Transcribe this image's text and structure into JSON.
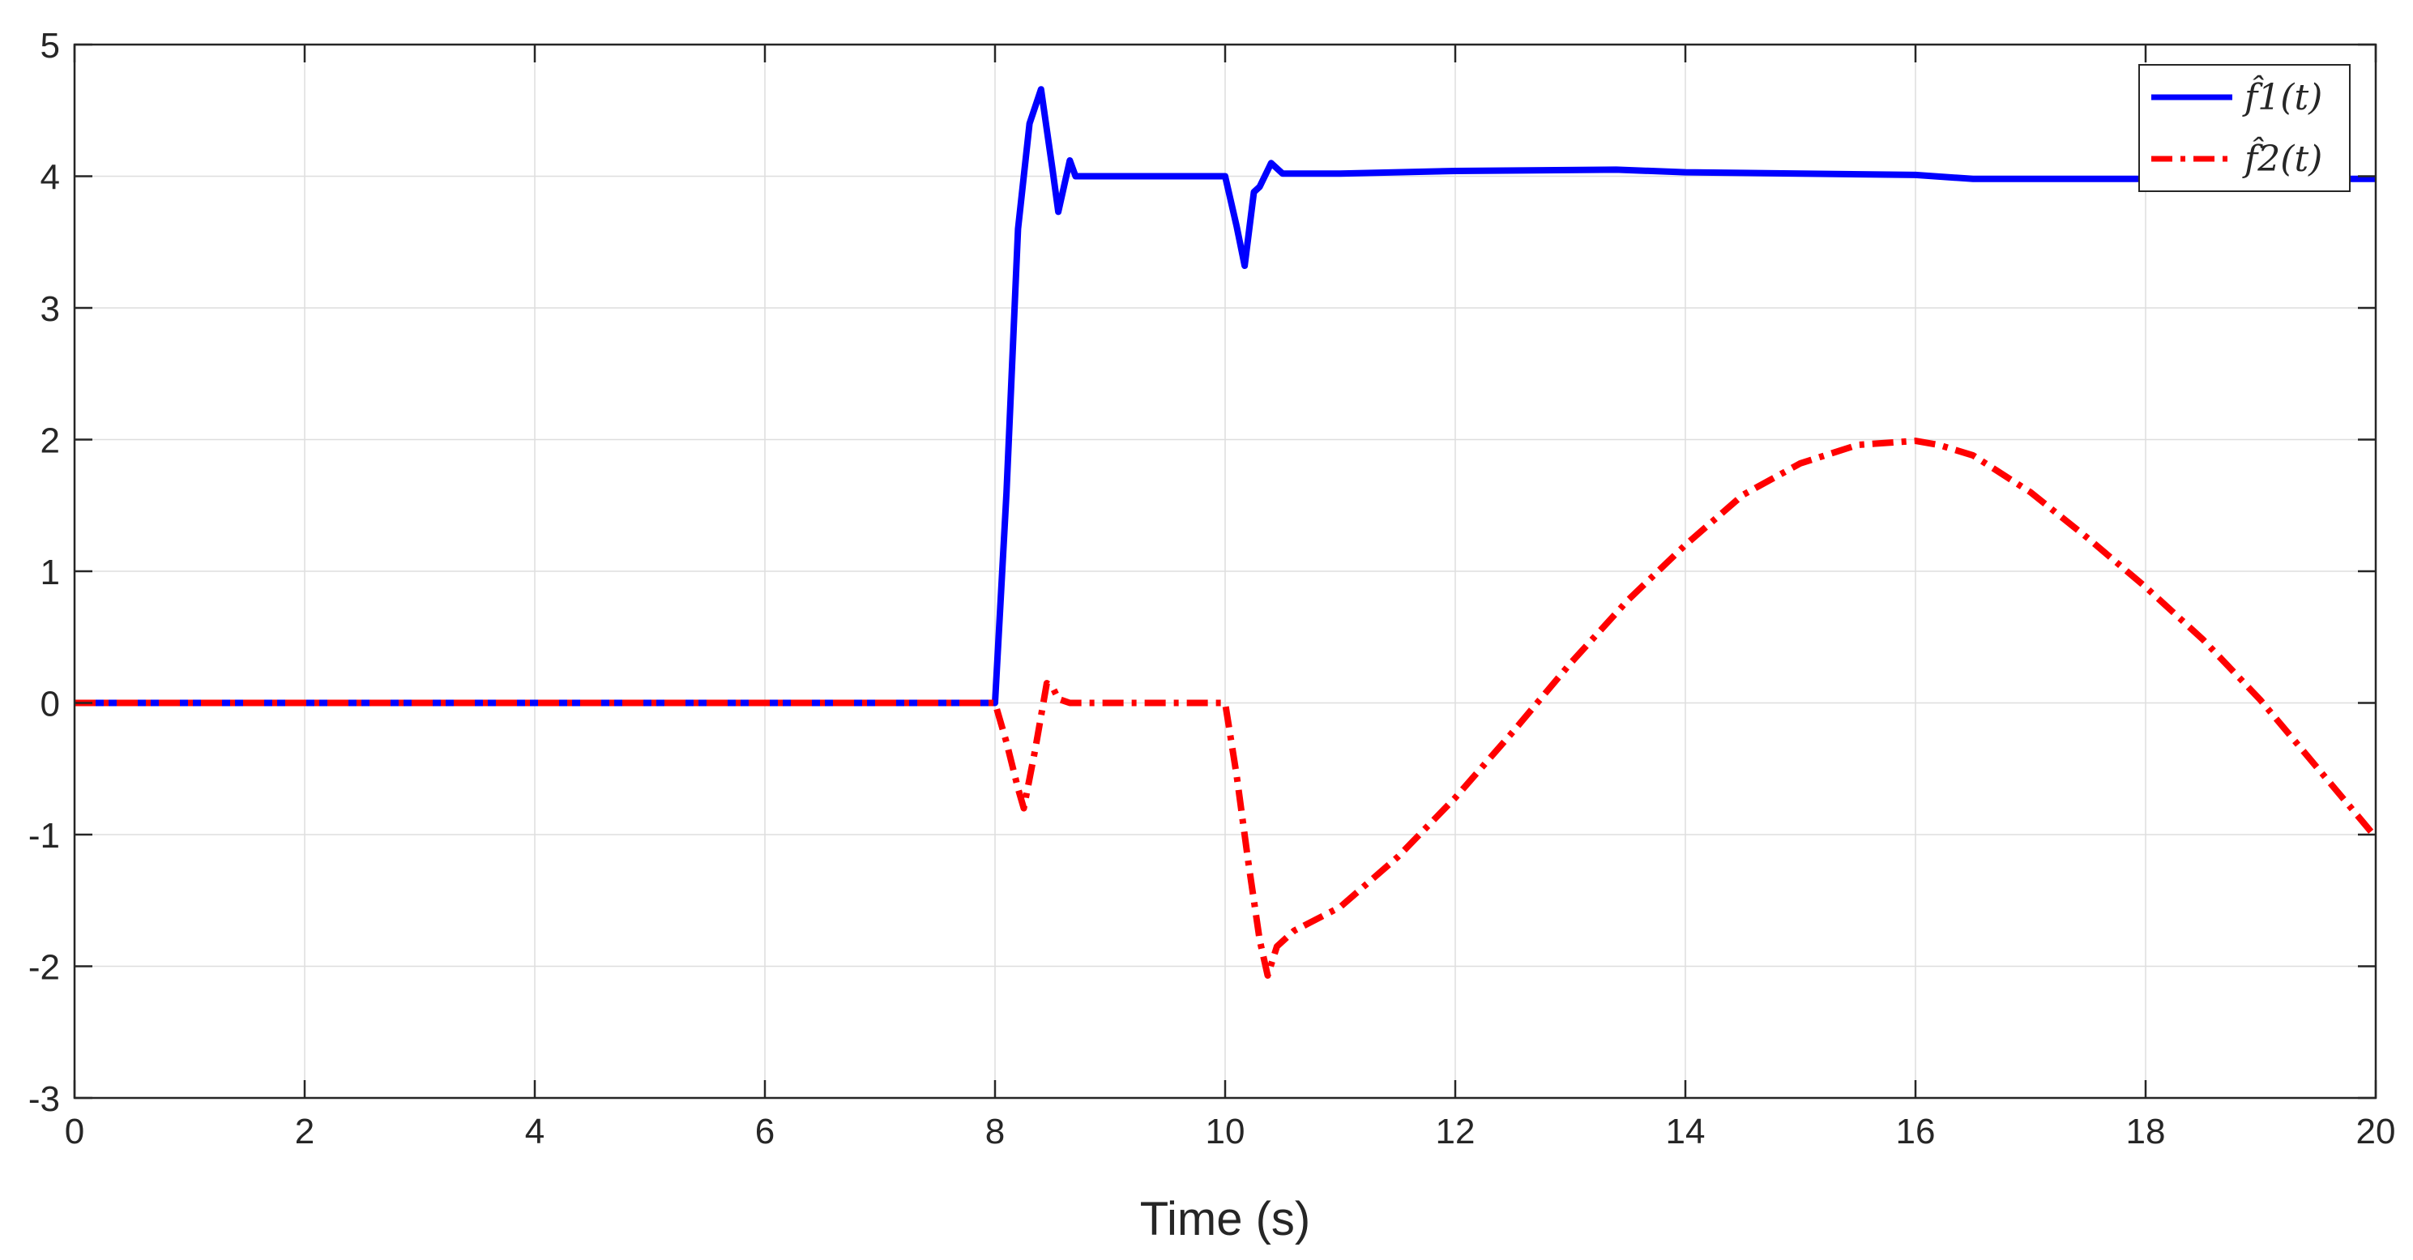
{
  "chart_data": {
    "type": "line",
    "title": "",
    "xlabel": "Time (s)",
    "ylabel": "",
    "xlim": [
      0,
      20
    ],
    "ylim": [
      -3,
      5
    ],
    "xticks": [
      0,
      2,
      4,
      6,
      8,
      10,
      12,
      14,
      16,
      18,
      20
    ],
    "yticks": [
      -3,
      -2,
      -1,
      0,
      1,
      2,
      3,
      4,
      5
    ],
    "xtick_labels": [
      "0",
      "2",
      "4",
      "6",
      "8",
      "10",
      "12",
      "14",
      "16",
      "18",
      "20"
    ],
    "ytick_labels": [
      "-3",
      "-2",
      "-1",
      "0",
      "1",
      "2",
      "3",
      "4",
      "5"
    ],
    "grid": true,
    "legend_position": "top-right",
    "series": [
      {
        "name": "f̂1(t)",
        "color": "#0000ff",
        "style": "solid",
        "x": [
          0,
          8.0,
          8.1,
          8.2,
          8.3,
          8.4,
          8.5,
          8.55,
          8.65,
          8.7,
          10.0,
          10.1,
          10.17,
          10.25,
          10.3,
          10.4,
          10.5,
          11,
          12,
          13.4,
          14,
          15,
          16,
          16.5,
          17,
          18,
          20
        ],
        "y": [
          0,
          0,
          1.6,
          3.6,
          4.4,
          4.66,
          4.05,
          3.73,
          4.12,
          4.0,
          4.0,
          3.62,
          3.32,
          3.88,
          3.92,
          4.1,
          4.02,
          4.02,
          4.04,
          4.05,
          4.03,
          4.02,
          4.01,
          3.98,
          3.98,
          3.98,
          3.98
        ]
      },
      {
        "name": "f̂2(t)",
        "color": "#ff0000",
        "style": "dashdot",
        "x": [
          0,
          8.0,
          8.1,
          8.2,
          8.25,
          8.35,
          8.45,
          8.5,
          8.55,
          8.65,
          10.0,
          10.1,
          10.2,
          10.3,
          10.37,
          10.45,
          10.6,
          11,
          11.5,
          12,
          12.5,
          13,
          13.5,
          14,
          14.5,
          15,
          15.5,
          16,
          16.2,
          16.5,
          17,
          17.5,
          18,
          18.5,
          19,
          19.5,
          20
        ],
        "y": [
          0,
          0,
          -0.3,
          -0.65,
          -0.8,
          -0.35,
          0.15,
          0.12,
          0.03,
          0.0,
          0.0,
          -0.55,
          -1.2,
          -1.8,
          -2.07,
          -1.85,
          -1.73,
          -1.55,
          -1.17,
          -0.72,
          -0.22,
          0.3,
          0.78,
          1.2,
          1.58,
          1.82,
          1.96,
          1.99,
          1.96,
          1.88,
          1.6,
          1.25,
          0.88,
          0.48,
          0.02,
          -0.5,
          -1.02
        ]
      }
    ]
  }
}
